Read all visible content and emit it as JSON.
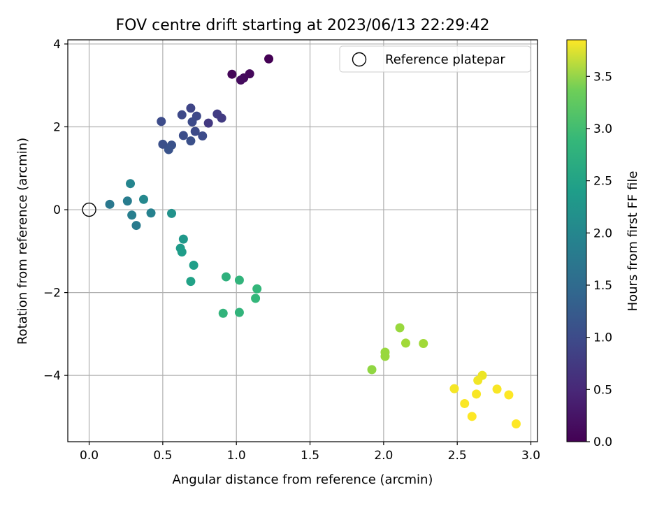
{
  "chart_data": {
    "type": "scatter",
    "title": "FOV centre drift starting at 2023/06/13 22:29:42",
    "xlabel": "Angular distance from reference (arcmin)",
    "ylabel": "Rotation from reference (arcmin)",
    "xlim": [
      -0.145,
      3.045
    ],
    "ylim": [
      -5.6,
      4.1
    ],
    "xticks": [
      "0.0",
      "0.5",
      "1.0",
      "1.5",
      "2.0",
      "2.5",
      "3.0"
    ],
    "yticks": [
      "−4",
      "−2",
      "0",
      "2",
      "4"
    ],
    "grid": true,
    "legend": {
      "placement": "top-right",
      "entries": [
        "Reference platepar"
      ]
    },
    "reference_point": {
      "x": 0.0,
      "y": 0.0
    },
    "colorbar": {
      "label": "Hours from first FF file",
      "range": [
        0.0,
        3.85
      ],
      "ticks": [
        "0.0",
        "0.5",
        "1.0",
        "1.5",
        "2.0",
        "2.5",
        "3.0",
        "3.5"
      ],
      "colormap": "viridis"
    },
    "points": [
      {
        "x": 1.22,
        "y": 3.64,
        "t": 0.0
      },
      {
        "x": 0.97,
        "y": 3.27,
        "t": 0.05
      },
      {
        "x": 1.09,
        "y": 3.28,
        "t": 0.08
      },
      {
        "x": 1.05,
        "y": 3.18,
        "t": 0.1
      },
      {
        "x": 1.03,
        "y": 3.13,
        "t": 0.12
      },
      {
        "x": 0.81,
        "y": 2.09,
        "t": 0.65
      },
      {
        "x": 0.87,
        "y": 2.31,
        "t": 0.7
      },
      {
        "x": 0.9,
        "y": 2.21,
        "t": 0.68
      },
      {
        "x": 0.69,
        "y": 2.45,
        "t": 0.8
      },
      {
        "x": 0.73,
        "y": 2.26,
        "t": 0.85
      },
      {
        "x": 0.63,
        "y": 2.29,
        "t": 0.85
      },
      {
        "x": 0.7,
        "y": 2.12,
        "t": 0.88
      },
      {
        "x": 0.49,
        "y": 2.13,
        "t": 0.9
      },
      {
        "x": 0.72,
        "y": 1.89,
        "t": 0.88
      },
      {
        "x": 0.64,
        "y": 1.79,
        "t": 0.92
      },
      {
        "x": 0.77,
        "y": 1.78,
        "t": 0.9
      },
      {
        "x": 0.69,
        "y": 1.66,
        "t": 0.95
      },
      {
        "x": 0.5,
        "y": 1.58,
        "t": 0.95
      },
      {
        "x": 0.56,
        "y": 1.56,
        "t": 0.98
      },
      {
        "x": 0.54,
        "y": 1.45,
        "t": 1.0
      },
      {
        "x": 0.28,
        "y": 0.63,
        "t": 1.75
      },
      {
        "x": 0.37,
        "y": 0.25,
        "t": 1.8
      },
      {
        "x": 0.26,
        "y": 0.21,
        "t": 1.62
      },
      {
        "x": 0.14,
        "y": 0.13,
        "t": 1.55
      },
      {
        "x": 0.29,
        "y": -0.13,
        "t": 1.65
      },
      {
        "x": 0.42,
        "y": -0.08,
        "t": 1.7
      },
      {
        "x": 0.32,
        "y": -0.38,
        "t": 1.6
      },
      {
        "x": 0.56,
        "y": -0.09,
        "t": 1.95
      },
      {
        "x": 0.64,
        "y": -0.71,
        "t": 2.05
      },
      {
        "x": 0.62,
        "y": -0.93,
        "t": 2.1
      },
      {
        "x": 0.63,
        "y": -1.02,
        "t": 2.12
      },
      {
        "x": 0.71,
        "y": -1.34,
        "t": 2.15
      },
      {
        "x": 0.69,
        "y": -1.73,
        "t": 2.2
      },
      {
        "x": 0.93,
        "y": -1.62,
        "t": 2.45
      },
      {
        "x": 1.02,
        "y": -1.7,
        "t": 2.5
      },
      {
        "x": 1.14,
        "y": -1.91,
        "t": 2.55
      },
      {
        "x": 1.13,
        "y": -2.14,
        "t": 2.55
      },
      {
        "x": 0.91,
        "y": -2.5,
        "t": 2.5
      },
      {
        "x": 1.02,
        "y": -2.48,
        "t": 2.5
      },
      {
        "x": 2.11,
        "y": -2.85,
        "t": 3.25
      },
      {
        "x": 2.15,
        "y": -3.22,
        "t": 3.3
      },
      {
        "x": 2.27,
        "y": -3.23,
        "t": 3.3
      },
      {
        "x": 2.01,
        "y": -3.44,
        "t": 3.25
      },
      {
        "x": 2.01,
        "y": -3.54,
        "t": 3.25
      },
      {
        "x": 1.92,
        "y": -3.86,
        "t": 3.2
      },
      {
        "x": 2.67,
        "y": -4.0,
        "t": 3.75
      },
      {
        "x": 2.64,
        "y": -4.12,
        "t": 3.78
      },
      {
        "x": 2.48,
        "y": -4.32,
        "t": 3.8
      },
      {
        "x": 2.77,
        "y": -4.33,
        "t": 3.82
      },
      {
        "x": 2.63,
        "y": -4.45,
        "t": 3.82
      },
      {
        "x": 2.85,
        "y": -4.47,
        "t": 3.85
      },
      {
        "x": 2.55,
        "y": -4.68,
        "t": 3.83
      },
      {
        "x": 2.6,
        "y": -4.99,
        "t": 3.85
      },
      {
        "x": 2.9,
        "y": -5.17,
        "t": 3.85
      }
    ]
  }
}
